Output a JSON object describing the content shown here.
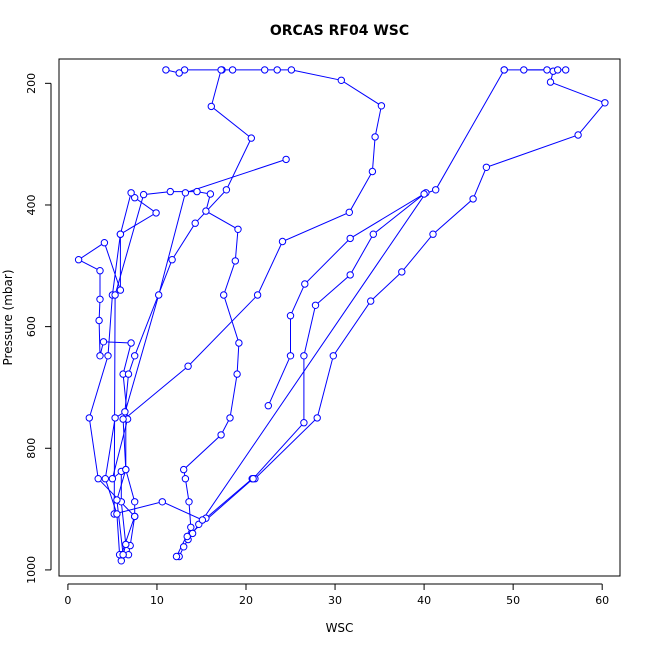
{
  "chart_data": {
    "type": "line",
    "title": "ORCAS RF04 WSC",
    "xlabel": "WSC",
    "ylabel": "Pressure (mbar)",
    "xlim": [
      -1,
      62
    ],
    "ylim": [
      1010,
      160
    ],
    "y_axis_inverted": true,
    "grid": false,
    "legend": "none",
    "xticks": [
      0,
      10,
      20,
      30,
      40,
      50,
      60
    ],
    "yticks": [
      200,
      400,
      600,
      800,
      1000
    ],
    "line_color": "#0000ff",
    "marker": "open-circle",
    "series": [
      {
        "points": [
          [
            12.5,
            978
          ],
          [
            13.0,
            962
          ],
          [
            13.5,
            950
          ],
          [
            14.0,
            940
          ],
          [
            14.7,
            925
          ],
          [
            15.5,
            915
          ],
          [
            20.7,
            850
          ],
          [
            21.0,
            850
          ],
          [
            28.0,
            750
          ],
          [
            29.8,
            648
          ],
          [
            34.0,
            558
          ],
          [
            37.5,
            510
          ],
          [
            41.0,
            448
          ],
          [
            45.5,
            390
          ],
          [
            47.0,
            338
          ],
          [
            57.3,
            285
          ],
          [
            60.3,
            232
          ],
          [
            54.2,
            198
          ],
          [
            54.5,
            180
          ],
          [
            53.8,
            178
          ],
          [
            49.0,
            178
          ]
        ]
      },
      {
        "points": [
          [
            6.8,
            975
          ],
          [
            7.0,
            960
          ],
          [
            7.5,
            912
          ],
          [
            7.5,
            888
          ],
          [
            6.5,
            835
          ],
          [
            6.5,
            750
          ],
          [
            13.5,
            665
          ],
          [
            21.3,
            548
          ],
          [
            24.1,
            460
          ],
          [
            31.6,
            412
          ],
          [
            34.2,
            345
          ],
          [
            34.5,
            288
          ],
          [
            35.2,
            237
          ],
          [
            30.7,
            195
          ],
          [
            25.1,
            178
          ],
          [
            23.5,
            178
          ],
          [
            22.1,
            178
          ],
          [
            18.5,
            178
          ],
          [
            17.3,
            178
          ],
          [
            13.1,
            178
          ],
          [
            12.5,
            183
          ],
          [
            11.0,
            178
          ]
        ]
      },
      {
        "points": [
          [
            6.0,
            985
          ],
          [
            6.2,
            975
          ],
          [
            6.5,
            958
          ],
          [
            6.0,
            888
          ],
          [
            6.0,
            838
          ],
          [
            5.0,
            850
          ],
          [
            6.7,
            752
          ],
          [
            6.2,
            678
          ],
          [
            7.1,
            627
          ],
          [
            4.0,
            625
          ],
          [
            3.6,
            648
          ],
          [
            3.5,
            590
          ],
          [
            3.6,
            555
          ],
          [
            3.6,
            508
          ],
          [
            1.2,
            490
          ],
          [
            4.1,
            462
          ],
          [
            5.9,
            540
          ],
          [
            5.9,
            448
          ],
          [
            9.9,
            413
          ],
          [
            7.5,
            388
          ],
          [
            7.1,
            380
          ],
          [
            5.9,
            448
          ],
          [
            5.0,
            548
          ],
          [
            4.5,
            648
          ],
          [
            2.4,
            750
          ],
          [
            3.4,
            850
          ],
          [
            7.5,
            912
          ],
          [
            6.0,
            975
          ]
        ]
      },
      {
        "points": [
          [
            12.2,
            978
          ],
          [
            13.8,
            930
          ],
          [
            13.6,
            888
          ],
          [
            13.2,
            850
          ],
          [
            13.0,
            835
          ],
          [
            17.2,
            778
          ],
          [
            18.2,
            750
          ],
          [
            19.0,
            678
          ],
          [
            19.2,
            627
          ],
          [
            17.5,
            548
          ],
          [
            18.8,
            492
          ],
          [
            19.1,
            440
          ],
          [
            15.5,
            410
          ],
          [
            16.0,
            382
          ],
          [
            14.5,
            378
          ],
          [
            11.5,
            378
          ],
          [
            8.5,
            383
          ],
          [
            5.3,
            548
          ],
          [
            5.2,
            908
          ],
          [
            10.6,
            888
          ],
          [
            15.1,
            918
          ],
          [
            40.2,
            380
          ],
          [
            31.7,
            455
          ],
          [
            26.6,
            530
          ],
          [
            25.0,
            582
          ],
          [
            25.0,
            648
          ],
          [
            22.5,
            730
          ]
        ]
      },
      {
        "points": [
          [
            5.8,
            975
          ],
          [
            5.5,
            908
          ],
          [
            4.2,
            850
          ],
          [
            5.3,
            750
          ],
          [
            6.4,
            740
          ],
          [
            6.8,
            678
          ],
          [
            7.5,
            648
          ],
          [
            11.7,
            490
          ],
          [
            14.3,
            430
          ],
          [
            17.8,
            375
          ],
          [
            20.6,
            290
          ],
          [
            16.1,
            238
          ],
          [
            17.2,
            178
          ]
        ]
      },
      {
        "points": [
          [
            6.2,
            975
          ],
          [
            5.5,
            885
          ],
          [
            6.5,
            835
          ],
          [
            6.2,
            752
          ],
          [
            10.2,
            548
          ],
          [
            13.2,
            380
          ],
          [
            24.5,
            325
          ]
        ]
      },
      {
        "points": [
          [
            13.4,
            945
          ],
          [
            20.8,
            850
          ],
          [
            26.5,
            758
          ],
          [
            26.5,
            648
          ],
          [
            27.8,
            565
          ],
          [
            31.7,
            515
          ],
          [
            34.3,
            448
          ],
          [
            40.0,
            382
          ],
          [
            41.3,
            375
          ],
          [
            49.0,
            178
          ]
        ]
      },
      {
        "points": [
          [
            51.2,
            178
          ],
          [
            55.0,
            178
          ],
          [
            55.9,
            178
          ]
        ]
      }
    ]
  }
}
